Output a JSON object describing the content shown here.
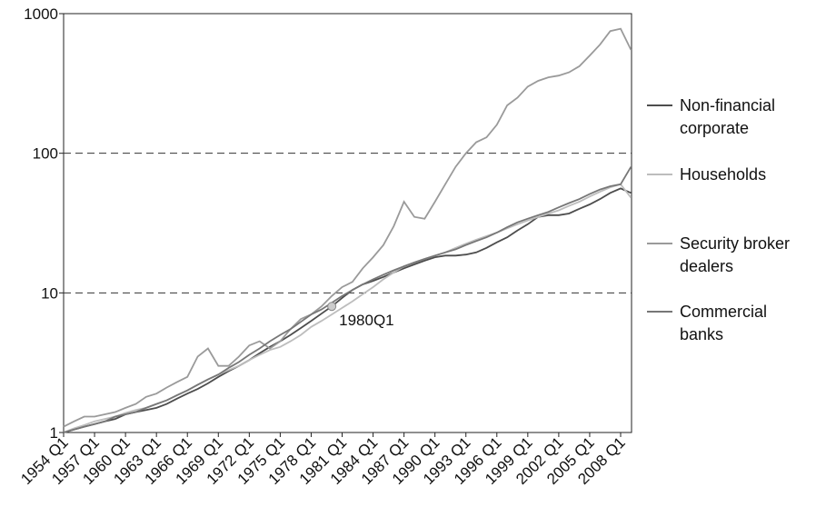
{
  "chart_data": {
    "type": "line",
    "log_scale": true,
    "categories": [
      "1954 Q1",
      null,
      null,
      "1957 Q1",
      null,
      null,
      "1960 Q1",
      null,
      null,
      "1963 Q1",
      null,
      null,
      "1966 Q1",
      null,
      null,
      "1969 Q1",
      null,
      null,
      "1972 Q1",
      null,
      null,
      "1975 Q1",
      null,
      null,
      "1978 Q1",
      null,
      null,
      "1981 Q1",
      null,
      null,
      "1984 Q1",
      null,
      null,
      "1987 Q1",
      null,
      null,
      "1990 Q1",
      null,
      null,
      "1993 Q1",
      null,
      null,
      "1996 Q1",
      null,
      null,
      "1999 Q1",
      null,
      null,
      "2002 Q1",
      null,
      null,
      "2005 Q1",
      null,
      null,
      "2008 Q1",
      null
    ],
    "ylim": [
      1,
      1000
    ],
    "yticks": [
      1,
      10,
      100,
      1000
    ],
    "grid": true,
    "series": [
      {
        "name": "Non-financial corporate",
        "color": "#4d4d4d",
        "values": [
          1.0,
          1.05,
          1.1,
          1.15,
          1.2,
          1.25,
          1.35,
          1.4,
          1.45,
          1.5,
          1.6,
          1.75,
          1.9,
          2.05,
          2.25,
          2.5,
          2.75,
          3.0,
          3.3,
          3.7,
          4.1,
          4.5,
          5.0,
          5.6,
          6.3,
          7.1,
          8.0,
          9.2,
          10.5,
          11.5,
          12.2,
          13.0,
          14.0,
          15.0,
          16.0,
          17.0,
          18.0,
          18.5,
          18.5,
          18.8,
          19.5,
          21,
          23,
          25,
          28,
          31,
          35,
          36,
          36,
          37,
          40,
          43,
          47,
          52,
          56,
          52
        ]
      },
      {
        "name": "Households",
        "color": "#bdbdbd",
        "values": [
          1.0,
          1.07,
          1.13,
          1.2,
          1.25,
          1.3,
          1.38,
          1.45,
          1.5,
          1.6,
          1.7,
          1.85,
          2.0,
          2.2,
          2.4,
          2.6,
          2.8,
          3.0,
          3.3,
          3.6,
          3.9,
          4.1,
          4.5,
          5.0,
          5.7,
          6.3,
          7.0,
          7.8,
          8.7,
          9.8,
          11,
          12.5,
          14,
          15.5,
          16.5,
          17.5,
          18.5,
          19.5,
          21,
          22.5,
          24,
          25.5,
          27,
          29,
          31,
          33,
          35,
          37,
          39,
          42,
          45,
          49,
          53,
          57,
          60,
          48
        ]
      },
      {
        "name": "Security broker dealers",
        "color": "#9a9a9a",
        "values": [
          1.1,
          1.2,
          1.3,
          1.3,
          1.35,
          1.4,
          1.5,
          1.6,
          1.8,
          1.9,
          2.1,
          2.3,
          2.5,
          3.5,
          4.0,
          3.0,
          3.0,
          3.5,
          4.2,
          4.5,
          4.0,
          4.5,
          5.5,
          6.5,
          7.0,
          8.0,
          9.5,
          11,
          12,
          15,
          18,
          22,
          30,
          45,
          35,
          34,
          45,
          60,
          80,
          100,
          120,
          130,
          160,
          220,
          250,
          300,
          330,
          350,
          360,
          380,
          420,
          500,
          600,
          750,
          780,
          550
        ]
      },
      {
        "name": "Commercial banks",
        "color": "#777777",
        "values": [
          1.0,
          1.05,
          1.1,
          1.15,
          1.2,
          1.3,
          1.35,
          1.4,
          1.5,
          1.6,
          1.7,
          1.85,
          2.0,
          2.2,
          2.4,
          2.6,
          2.9,
          3.2,
          3.6,
          4.0,
          4.5,
          5.0,
          5.5,
          6.2,
          7.0,
          7.6,
          8.5,
          9.5,
          10.5,
          11.5,
          12.5,
          13.5,
          14.5,
          15.5,
          16.5,
          17.5,
          18.5,
          19.5,
          20.5,
          22,
          23.5,
          25,
          27,
          29.5,
          32,
          34,
          36,
          38,
          41,
          44,
          47,
          51,
          55,
          58,
          60,
          80
        ]
      }
    ],
    "annotation": {
      "text": "1980Q1",
      "value": 8
    }
  }
}
